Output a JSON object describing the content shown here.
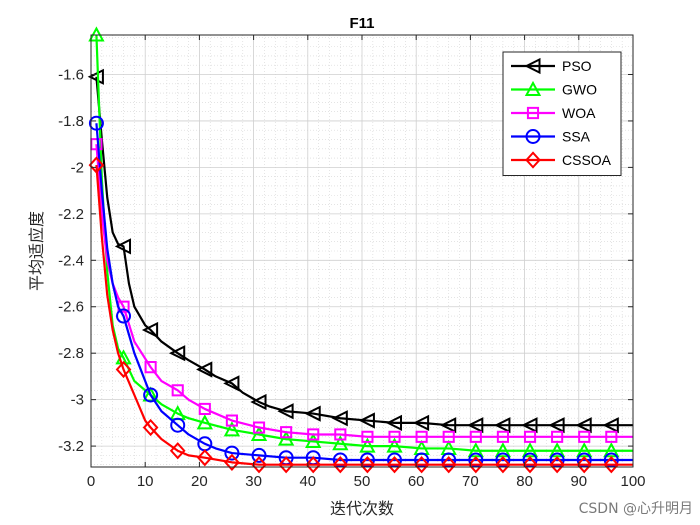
{
  "chart_data": {
    "type": "line",
    "title": "F11",
    "xlabel": "迭代次数",
    "ylabel": "平均适应度",
    "xlim": [
      0,
      100
    ],
    "ylim": [
      -3.29,
      -1.43
    ],
    "grid": true,
    "minor_grid": true,
    "legend_position": "top-right",
    "x_ticks": [
      0,
      10,
      20,
      30,
      40,
      50,
      60,
      70,
      80,
      90,
      100
    ],
    "x_tick_labels": [
      "0",
      "10",
      "20",
      "30",
      "40",
      "50",
      "60",
      "70",
      "80",
      "90",
      "100"
    ],
    "y_ticks": [
      -1.6,
      -1.8,
      -2,
      -2.2,
      -2.4,
      -2.6,
      -2.8,
      -3,
      -3.2
    ],
    "y_tick_labels": [
      "-1.6",
      "-1.8",
      "-2",
      "-2.2",
      "-2.4",
      "-2.6",
      "-2.8",
      "-3",
      "-3.2"
    ],
    "marker_x": [
      1,
      6,
      11,
      16,
      21,
      26,
      31,
      36,
      41,
      46,
      51,
      56,
      61,
      66,
      71,
      76,
      81,
      86,
      91,
      96
    ],
    "series": [
      {
        "name": "PSO",
        "color": "#000000",
        "marker": "triangle-left",
        "x": [
          1,
          2,
          3,
          4,
          5,
          6,
          7,
          8,
          10,
          11,
          13,
          16,
          18,
          21,
          23,
          26,
          28,
          31,
          33,
          36,
          41,
          46,
          51,
          56,
          61,
          66,
          71,
          76,
          81,
          86,
          91,
          96,
          100
        ],
        "y": [
          -1.61,
          -1.88,
          -2.13,
          -2.28,
          -2.33,
          -2.34,
          -2.5,
          -2.6,
          -2.68,
          -2.7,
          -2.75,
          -2.8,
          -2.83,
          -2.87,
          -2.9,
          -2.93,
          -2.97,
          -3.01,
          -3.03,
          -3.05,
          -3.06,
          -3.08,
          -3.09,
          -3.1,
          -3.1,
          -3.11,
          -3.11,
          -3.11,
          -3.11,
          -3.11,
          -3.11,
          -3.11,
          -3.11
        ]
      },
      {
        "name": "GWO",
        "color": "#00ff00",
        "marker": "triangle-up",
        "x": [
          1,
          2,
          3,
          4,
          5,
          6,
          8,
          11,
          13,
          16,
          18,
          21,
          26,
          31,
          36,
          41,
          46,
          51,
          56,
          61,
          66,
          71,
          76,
          81,
          86,
          91,
          96,
          100
        ],
        "y": [
          -1.43,
          -2.05,
          -2.45,
          -2.68,
          -2.78,
          -2.82,
          -2.92,
          -2.98,
          -3.02,
          -3.06,
          -3.08,
          -3.1,
          -3.13,
          -3.15,
          -3.17,
          -3.18,
          -3.19,
          -3.2,
          -3.2,
          -3.21,
          -3.21,
          -3.22,
          -3.22,
          -3.22,
          -3.22,
          -3.22,
          -3.22,
          -3.22
        ]
      },
      {
        "name": "WOA",
        "color": "#ff00ff",
        "marker": "square",
        "x": [
          1,
          2,
          3,
          4,
          5,
          6,
          8,
          11,
          13,
          16,
          18,
          21,
          26,
          31,
          36,
          41,
          46,
          51,
          56,
          61,
          66,
          71,
          76,
          81,
          86,
          91,
          96,
          100
        ],
        "y": [
          -1.9,
          -2.2,
          -2.4,
          -2.5,
          -2.56,
          -2.6,
          -2.75,
          -2.86,
          -2.92,
          -2.96,
          -3.0,
          -3.04,
          -3.09,
          -3.12,
          -3.14,
          -3.15,
          -3.15,
          -3.16,
          -3.16,
          -3.16,
          -3.16,
          -3.16,
          -3.16,
          -3.16,
          -3.16,
          -3.16,
          -3.16,
          -3.16
        ]
      },
      {
        "name": "SSA",
        "color": "#0000ff",
        "marker": "circle",
        "x": [
          1,
          2,
          3,
          4,
          5,
          6,
          8,
          11,
          13,
          16,
          18,
          21,
          23,
          26,
          31,
          36,
          41,
          46,
          51,
          56,
          61,
          66,
          71,
          76,
          81,
          86,
          91,
          96,
          100
        ],
        "y": [
          -1.81,
          -2.1,
          -2.35,
          -2.5,
          -2.6,
          -2.64,
          -2.8,
          -2.98,
          -3.05,
          -3.11,
          -3.15,
          -3.19,
          -3.21,
          -3.23,
          -3.24,
          -3.25,
          -3.25,
          -3.26,
          -3.26,
          -3.26,
          -3.26,
          -3.26,
          -3.26,
          -3.26,
          -3.26,
          -3.26,
          -3.26,
          -3.26,
          -3.26
        ]
      },
      {
        "name": "CSSOA",
        "color": "#ff0000",
        "marker": "diamond",
        "x": [
          1,
          2,
          3,
          4,
          5,
          6,
          8,
          10,
          11,
          13,
          16,
          18,
          21,
          26,
          31,
          36,
          41,
          46,
          51,
          56,
          61,
          66,
          71,
          76,
          81,
          86,
          91,
          96,
          100
        ],
        "y": [
          -1.99,
          -2.3,
          -2.55,
          -2.7,
          -2.8,
          -2.87,
          -2.98,
          -3.09,
          -3.12,
          -3.17,
          -3.22,
          -3.24,
          -3.25,
          -3.27,
          -3.28,
          -3.28,
          -3.28,
          -3.28,
          -3.28,
          -3.28,
          -3.28,
          -3.28,
          -3.28,
          -3.28,
          -3.28,
          -3.28,
          -3.28,
          -3.28,
          -3.28
        ]
      }
    ]
  },
  "watermark": "CSDN @心升明月"
}
